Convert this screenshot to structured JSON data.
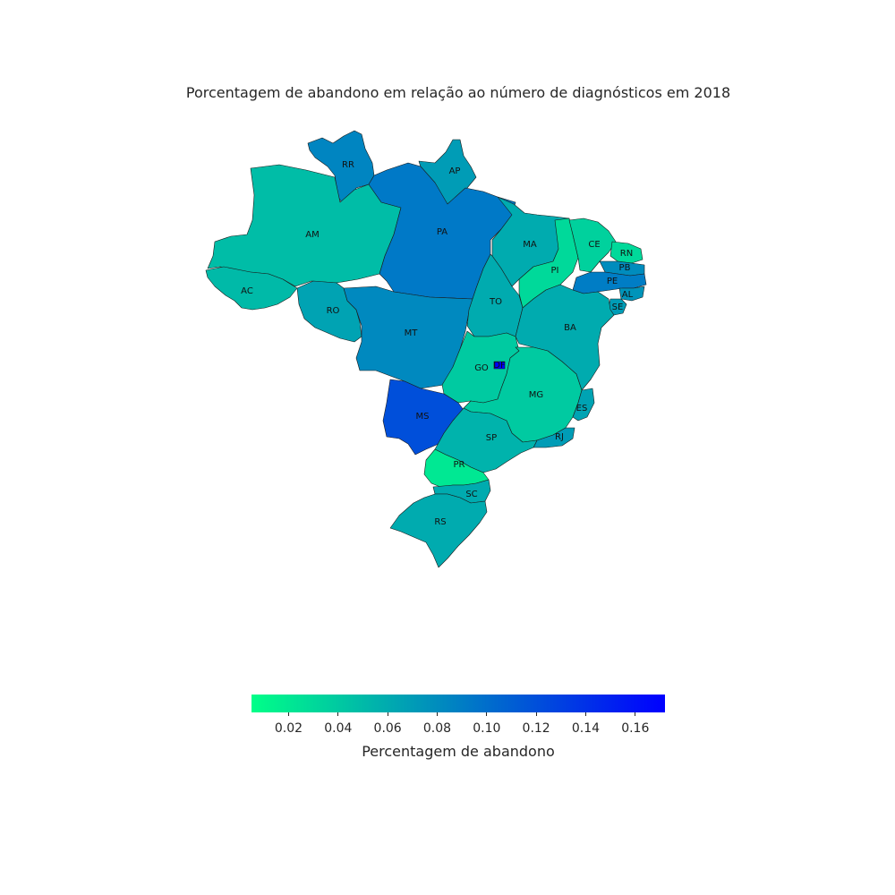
{
  "title": "Porcentagem de abandono em relação ao número de diagnósticos em 2018",
  "colorbar": {
    "label": "Percentagem de abandono",
    "min": 0.005,
    "max": 0.172,
    "low_color": "#00ff88",
    "high_color": "#0000ff",
    "ticks": [
      "0.02",
      "0.04",
      "0.06",
      "0.08",
      "0.10",
      "0.12",
      "0.14",
      "0.16"
    ]
  },
  "chart_data": {
    "type": "choropleth",
    "title": "Porcentagem de abandono em relação ao número de diagnósticos em 2018",
    "colorbar_label": "Percentagem de abandono",
    "range": [
      0.005,
      0.172
    ],
    "states": [
      {
        "name": "RR",
        "value": 0.085
      },
      {
        "name": "AP",
        "value": 0.07
      },
      {
        "name": "AM",
        "value": 0.048
      },
      {
        "name": "PA",
        "value": 0.093
      },
      {
        "name": "AC",
        "value": 0.05
      },
      {
        "name": "RO",
        "value": 0.065
      },
      {
        "name": "MT",
        "value": 0.082
      },
      {
        "name": "MA",
        "value": 0.06
      },
      {
        "name": "PI",
        "value": 0.03
      },
      {
        "name": "CE",
        "value": 0.035
      },
      {
        "name": "RN",
        "value": 0.03
      },
      {
        "name": "PB",
        "value": 0.08
      },
      {
        "name": "PE",
        "value": 0.09
      },
      {
        "name": "AL",
        "value": 0.075
      },
      {
        "name": "SE",
        "value": 0.07
      },
      {
        "name": "TO",
        "value": 0.06
      },
      {
        "name": "BA",
        "value": 0.06
      },
      {
        "name": "GO",
        "value": 0.04
      },
      {
        "name": "DF",
        "value": 0.172
      },
      {
        "name": "MG",
        "value": 0.04
      },
      {
        "name": "ES",
        "value": 0.065
      },
      {
        "name": "RJ",
        "value": 0.07
      },
      {
        "name": "MS",
        "value": 0.12
      },
      {
        "name": "SP",
        "value": 0.055
      },
      {
        "name": "PR",
        "value": 0.02
      },
      {
        "name": "SC",
        "value": 0.06
      },
      {
        "name": "RS",
        "value": 0.06
      }
    ]
  }
}
